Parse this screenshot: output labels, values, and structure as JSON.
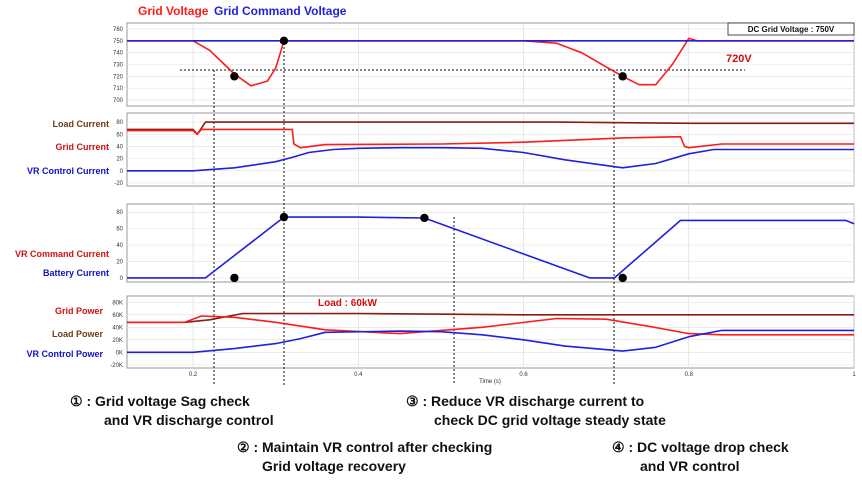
{
  "legend": {
    "grid_voltage": "Grid Voltage",
    "grid_command_voltage": "Grid Command Voltage"
  },
  "colors": {
    "red": "#ff1a1a",
    "blue": "#1f1fe0",
    "brown": "#8b1a10",
    "dark_red": "#d01010",
    "label_blue": "#1010c0",
    "label_brown": "#6b3b1a"
  },
  "panel1": {
    "box_label": "DC Grid Voltage : 750V",
    "marker_label": "720V",
    "y_ticks": [
      "760",
      "750",
      "740",
      "730",
      "720",
      "710",
      "700"
    ]
  },
  "panel2": {
    "labels": [
      "Load Current",
      "Grid Current",
      "VR Control Current"
    ],
    "y_ticks": [
      "80",
      "60",
      "40",
      "20",
      "0",
      "-20"
    ]
  },
  "panel3": {
    "labels": [
      "VR Command Current",
      "Battery Current"
    ],
    "y_ticks": [
      "80",
      "60",
      "40",
      "20",
      "0"
    ]
  },
  "panel4": {
    "labels": [
      "Grid Power",
      "Load Power",
      "VR Control Power"
    ],
    "annotation": "Load : 60kW",
    "y_ticks": [
      "80K",
      "60K",
      "40K",
      "20K",
      "0K",
      "-20K"
    ]
  },
  "x_axis": {
    "title": "Time (s)",
    "ticks": [
      "0.2",
      "0.4",
      "0.6",
      "0.8",
      "1"
    ]
  },
  "notes": {
    "n1_line1": "① : Grid voltage Sag check",
    "n1_line2": "and VR discharge control",
    "n2_line1": "② : Maintain VR control after checking",
    "n2_line2": "Grid voltage recovery",
    "n3_line1": "③ : Reduce VR discharge current to",
    "n3_line2": "check DC grid voltage steady state",
    "n4_line1": "④ : DC voltage drop check",
    "n4_line2": "and VR control"
  },
  "chart_data": {
    "type": "line",
    "x_unit": "Time (s)",
    "xlim": [
      0.12,
      1.0
    ],
    "panels": [
      {
        "name": "voltage",
        "ylim": [
          695,
          765
        ],
        "series": [
          {
            "name": "Grid Voltage",
            "color": "#ff1a1a",
            "x": [
              0.12,
              0.2,
              0.22,
              0.25,
              0.27,
              0.29,
              0.3,
              0.31,
              0.45,
              0.6,
              0.64,
              0.67,
              0.7,
              0.72,
              0.74,
              0.76,
              0.78,
              0.8,
              0.81,
              1.0
            ],
            "y": [
              750,
              750,
              742,
              722,
              712,
              716,
              727,
              750,
              750,
              750,
              748,
              740,
              728,
              720,
              713,
              713,
              730,
              752,
              750,
              750
            ]
          },
          {
            "name": "Grid Command Voltage",
            "color": "#1f1fe0",
            "x": [
              0.12,
              1.0
            ],
            "y": [
              750,
              750
            ]
          }
        ]
      },
      {
        "name": "current",
        "ylim": [
          -25,
          95
        ],
        "series": [
          {
            "name": "Load Current",
            "color": "#8b1a10",
            "x": [
              0.12,
              0.2,
              0.205,
              0.215,
              0.6,
              0.64,
              0.8,
              1.0
            ],
            "y": [
              68,
              68,
              60,
              80,
              80,
              80,
              78,
              78
            ]
          },
          {
            "name": "Grid Current",
            "color": "#ff1a1a",
            "x": [
              0.12,
              0.2,
              0.205,
              0.21,
              0.32,
              0.322,
              0.33,
              0.36,
              0.5,
              0.6,
              0.72,
              0.79,
              0.795,
              0.8,
              0.84,
              1.0
            ],
            "y": [
              66,
              66,
              60,
              68,
              68,
              44,
              38,
              43,
              44,
              47,
              54,
              56,
              40,
              38,
              44,
              44
            ]
          },
          {
            "name": "VR Control Current",
            "color": "#1f1fe0",
            "x": [
              0.12,
              0.2,
              0.25,
              0.3,
              0.32,
              0.34,
              0.37,
              0.4,
              0.45,
              0.5,
              0.55,
              0.6,
              0.65,
              0.72,
              0.76,
              0.8,
              0.83,
              1.0
            ],
            "y": [
              0,
              0,
              5,
              15,
              22,
              30,
              35,
              37,
              38,
              38,
              37,
              30,
              18,
              5,
              12,
              28,
              35,
              35
            ]
          }
        ]
      },
      {
        "name": "vr_command",
        "ylim": [
          -5,
          90
        ],
        "series": [
          {
            "name": "Battery Current",
            "color": "#1f1fe0",
            "x": [
              0.12,
              0.215,
              0.31,
              0.4,
              0.48,
              0.68,
              0.71,
              0.79,
              0.8,
              0.99,
              1.0
            ],
            "y": [
              0,
              0,
              74,
              74,
              73,
              0,
              0,
              70,
              70,
              70,
              66
            ]
          }
        ]
      },
      {
        "name": "power",
        "ylim": [
          -25000,
          90000
        ],
        "series": [
          {
            "name": "Load Power",
            "color": "#8b1a10",
            "x": [
              0.12,
              0.19,
              0.22,
              0.26,
              0.32,
              0.4,
              0.6,
              1.0
            ],
            "y": [
              48000,
              48000,
              52000,
              62000,
              62000,
              62000,
              60000,
              60000
            ]
          },
          {
            "name": "Grid Power",
            "color": "#ff1a1a",
            "x": [
              0.12,
              0.19,
              0.21,
              0.25,
              0.3,
              0.32,
              0.36,
              0.45,
              0.55,
              0.64,
              0.7,
              0.75,
              0.8,
              0.84,
              1.0
            ],
            "y": [
              48000,
              48000,
              58000,
              56000,
              48000,
              44000,
              36000,
              30000,
              40000,
              54000,
              53000,
              42000,
              30000,
              28000,
              28000
            ]
          },
          {
            "name": "VR Control Power",
            "color": "#1f1fe0",
            "x": [
              0.12,
              0.2,
              0.25,
              0.3,
              0.33,
              0.36,
              0.45,
              0.5,
              0.55,
              0.6,
              0.65,
              0.72,
              0.76,
              0.8,
              0.84,
              1.0
            ],
            "y": [
              0,
              0,
              6000,
              14000,
              22000,
              32000,
              34000,
              33000,
              28000,
              20000,
              10000,
              2000,
              8000,
              25000,
              35000,
              35000
            ]
          }
        ]
      }
    ],
    "markers": [
      {
        "panel": "voltage",
        "x": 0.25,
        "y": 720
      },
      {
        "panel": "voltage",
        "x": 0.31,
        "y": 750
      },
      {
        "panel": "voltage",
        "x": 0.72,
        "y": 720
      },
      {
        "panel": "vr_command",
        "x": 0.25,
        "y": 0
      },
      {
        "panel": "vr_command",
        "x": 0.31,
        "y": 74
      },
      {
        "panel": "vr_command",
        "x": 0.48,
        "y": 73
      },
      {
        "panel": "vr_command",
        "x": 0.72,
        "y": 0
      }
    ]
  }
}
